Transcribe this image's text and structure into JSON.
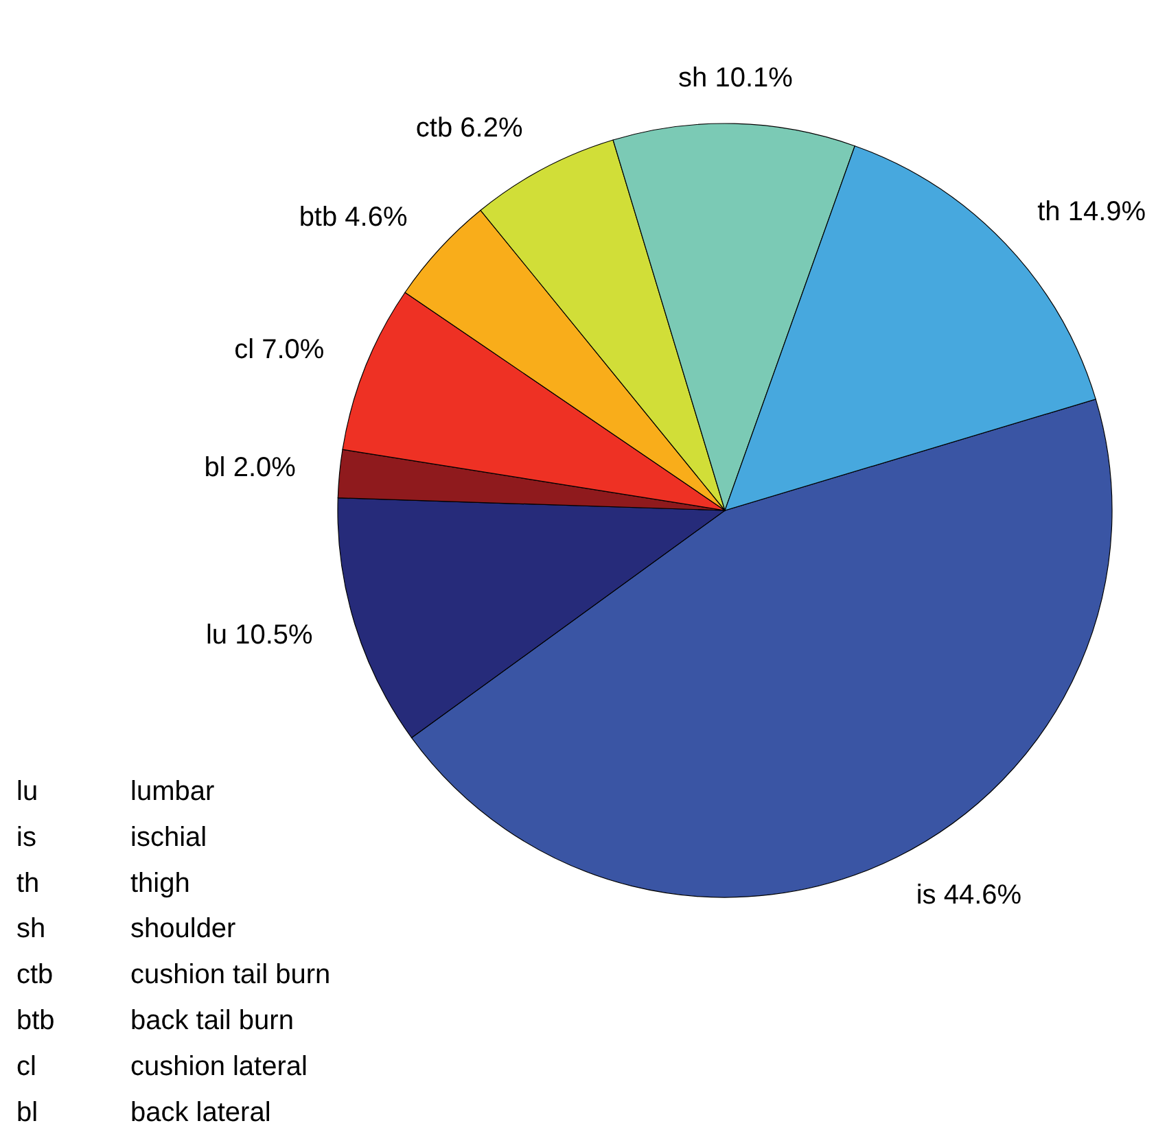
{
  "chart_data": {
    "type": "pie",
    "categories": [
      "is",
      "lu",
      "bl",
      "cl",
      "btb",
      "ctb",
      "sh",
      "th"
    ],
    "values": [
      44.6,
      10.5,
      2.0,
      7.0,
      4.6,
      6.2,
      10.1,
      14.9
    ],
    "colors": [
      "#3a55a4",
      "#262b7a",
      "#8f1a1d",
      "#ee3124",
      "#f9ad1a",
      "#d1de38",
      "#7bcab5",
      "#47a8de"
    ],
    "value_labels": [
      "44.6%",
      "10.5%",
      "2.0%",
      "7.0%",
      "4.6%",
      "6.2%",
      "10.1%",
      "14.9%"
    ],
    "annotations": [
      "lu lumbar",
      "is ischial",
      "th thigh",
      "sh shoulder",
      "ctb cushion tail burn",
      "btb back tail burn",
      "cl cushion lateral",
      "bl back lateral"
    ]
  }
}
